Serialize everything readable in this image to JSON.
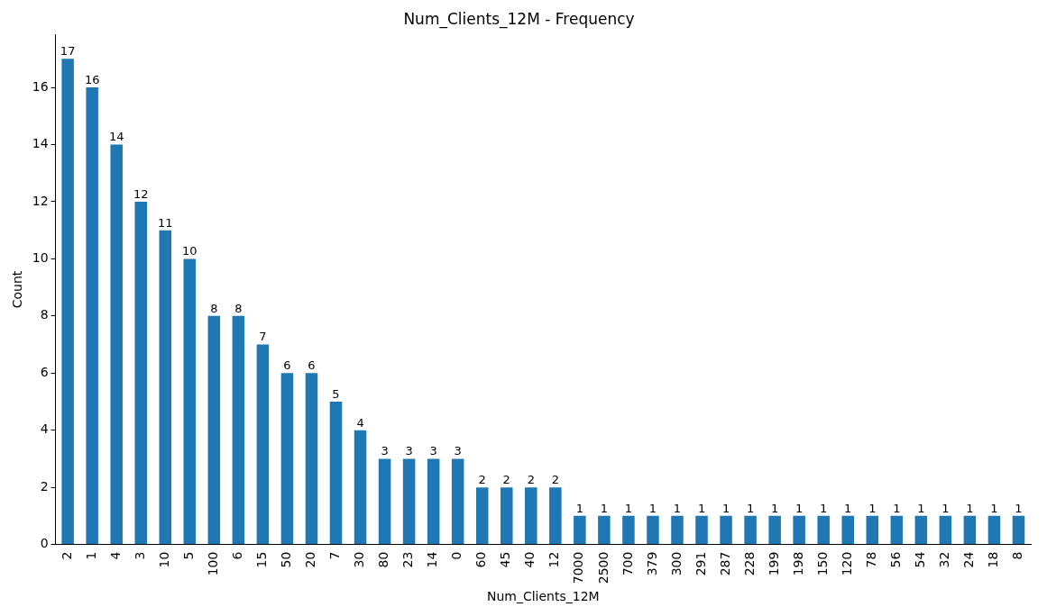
{
  "chart_data": {
    "type": "bar",
    "title": "Num_Clients_12M - Frequency",
    "xlabel": "Num_Clients_12M",
    "ylabel": "Count",
    "categories": [
      "2",
      "1",
      "4",
      "3",
      "10",
      "5",
      "100",
      "6",
      "15",
      "50",
      "20",
      "7",
      "30",
      "80",
      "23",
      "14",
      "0",
      "60",
      "45",
      "40",
      "12",
      "7000",
      "2500",
      "700",
      "379",
      "300",
      "291",
      "287",
      "228",
      "199",
      "198",
      "150",
      "120",
      "78",
      "56",
      "54",
      "32",
      "24",
      "18",
      "8"
    ],
    "values": [
      17,
      16,
      14,
      12,
      11,
      10,
      8,
      8,
      7,
      6,
      6,
      5,
      4,
      3,
      3,
      3,
      3,
      2,
      2,
      2,
      2,
      1,
      1,
      1,
      1,
      1,
      1,
      1,
      1,
      1,
      1,
      1,
      1,
      1,
      1,
      1,
      1,
      1,
      1,
      1
    ],
    "color": "#1f77b4",
    "ylim": [
      0,
      17.85
    ],
    "yticks": [
      0,
      2,
      4,
      6,
      8,
      10,
      12,
      14,
      16
    ],
    "grid": false,
    "legend": false,
    "data_labels": true
  }
}
